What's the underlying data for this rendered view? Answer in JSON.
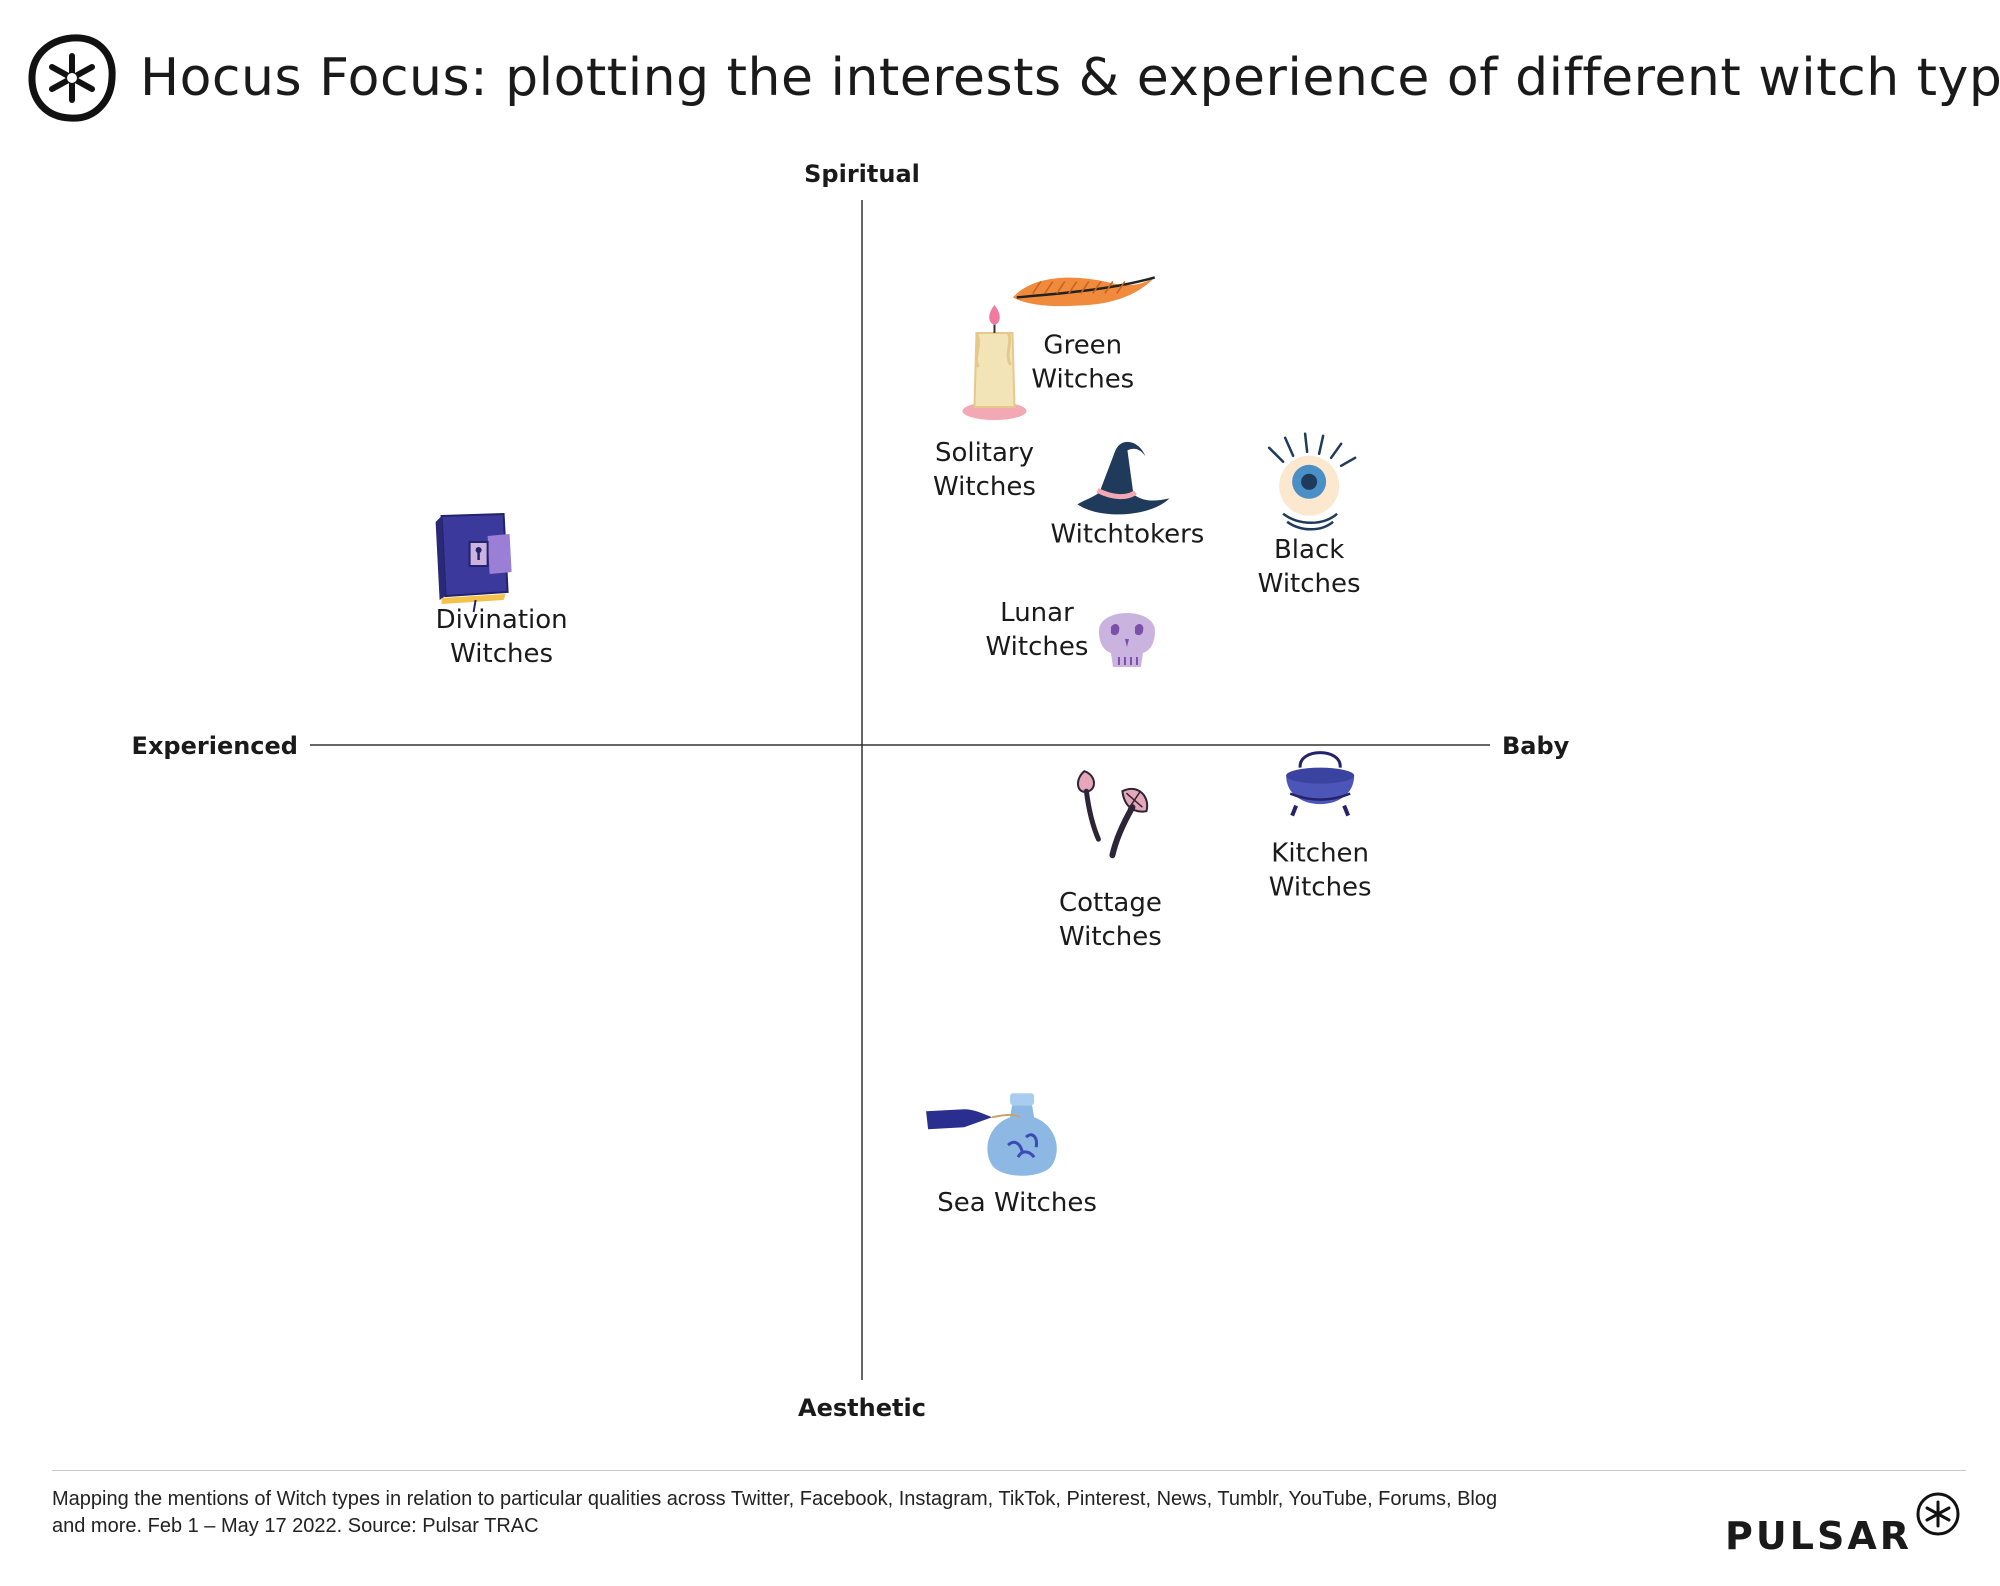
{
  "header": {
    "title": "Hocus Focus: plotting the interests & experience of different witch types",
    "logo_icon": "pulsar-asterisk-circle-icon"
  },
  "chart_data": {
    "type": "scatter",
    "title": "Hocus Focus: plotting the interests & experience of different witch types",
    "axes": {
      "top": "Spiritual",
      "bottom": "Aesthetic",
      "left": "Experienced",
      "right": "Baby"
    },
    "grid": false,
    "legend": "none",
    "points": [
      {
        "label": "Green Witches",
        "icon": "feather-icon",
        "color": "#f08a3c",
        "x": 0.4,
        "y": 0.84
      },
      {
        "label": "Solitary Witches",
        "icon": "candle-icon",
        "color": "#f3e4b8",
        "x": 0.24,
        "y": 0.7
      },
      {
        "label": "Witchtokers",
        "icon": "witch-hat-icon",
        "color": "#1f3a5a",
        "x": 0.47,
        "y": 0.49
      },
      {
        "label": "Black Witches",
        "icon": "eye-icon",
        "color": "#4a8fc6",
        "x": 0.81,
        "y": 0.48
      },
      {
        "label": "Divination Witches",
        "icon": "spellbook-icon",
        "color": "#3b3a9c",
        "x": -0.7,
        "y": 0.35
      },
      {
        "label": "Lunar Witches",
        "icon": "skull-icon",
        "color": "#cbb3e0",
        "x": 0.48,
        "y": 0.2
      },
      {
        "label": "Cottage Witches",
        "icon": "mushroom-icon",
        "color": "#2d2438",
        "x": 0.45,
        "y": -0.13
      },
      {
        "label": "Kitchen Witches",
        "icon": "cauldron-icon",
        "color": "#4b56b8",
        "x": 0.83,
        "y": -0.09
      },
      {
        "label": "Sea Witches",
        "icon": "potion-bottle-icon",
        "color": "#8cb8e3",
        "x": 0.29,
        "y": -0.73
      }
    ]
  },
  "footer": {
    "caption": "Mapping the mentions of Witch types in relation to particular qualities across Twitter, Facebook, Instagram, TikTok, Pinterest, News, Tumblr, YouTube, Forums, Blog and more. Feb 1 – May 17 2022. Source: Pulsar TRAC",
    "brand": "PULSAR",
    "brand_icon": "pulsar-asterisk-icon"
  }
}
